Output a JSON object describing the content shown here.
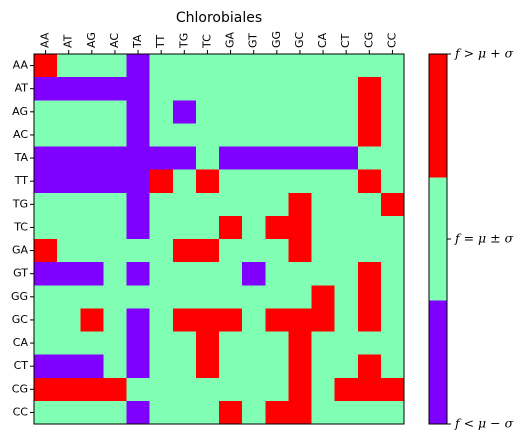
{
  "chart_data": {
    "type": "heatmap",
    "title": "Chlorobiales",
    "x_labels": [
      "AA",
      "AT",
      "AG",
      "AC",
      "TA",
      "TT",
      "TG",
      "TC",
      "GA",
      "GT",
      "GG",
      "GC",
      "CA",
      "CT",
      "CG",
      "CC"
    ],
    "y_labels": [
      "AA",
      "AT",
      "AG",
      "AC",
      "TA",
      "TT",
      "TG",
      "TC",
      "GA",
      "GT",
      "GG",
      "GC",
      "CA",
      "CT",
      "CG",
      "CC"
    ],
    "levels": [
      "below",
      "within",
      "above"
    ],
    "colors": {
      "below": "#8000ff",
      "within": "#80ffb4",
      "above": "#ff0000"
    },
    "colorbar_labels": [
      "f < μ − σ",
      "f = μ ± σ",
      "f > μ + σ"
    ],
    "matrix": [
      [
        2,
        1,
        1,
        1,
        0,
        1,
        1,
        1,
        1,
        1,
        1,
        1,
        1,
        1,
        1,
        1
      ],
      [
        0,
        0,
        0,
        0,
        0,
        1,
        1,
        1,
        1,
        1,
        1,
        1,
        1,
        1,
        2,
        1
      ],
      [
        1,
        1,
        1,
        1,
        0,
        1,
        0,
        1,
        1,
        1,
        1,
        1,
        1,
        1,
        2,
        1
      ],
      [
        1,
        1,
        1,
        1,
        0,
        1,
        1,
        1,
        1,
        1,
        1,
        1,
        1,
        1,
        2,
        1
      ],
      [
        0,
        0,
        0,
        0,
        0,
        0,
        0,
        1,
        0,
        0,
        0,
        0,
        0,
        0,
        1,
        1
      ],
      [
        0,
        0,
        0,
        0,
        0,
        2,
        1,
        2,
        1,
        1,
        1,
        1,
        1,
        1,
        2,
        1
      ],
      [
        1,
        1,
        1,
        1,
        0,
        1,
        1,
        1,
        1,
        1,
        1,
        2,
        1,
        1,
        1,
        2
      ],
      [
        1,
        1,
        1,
        1,
        0,
        1,
        1,
        1,
        2,
        1,
        2,
        2,
        1,
        1,
        1,
        1
      ],
      [
        2,
        1,
        1,
        1,
        1,
        1,
        2,
        2,
        1,
        1,
        1,
        2,
        1,
        1,
        1,
        1
      ],
      [
        0,
        0,
        0,
        1,
        0,
        1,
        1,
        1,
        1,
        0,
        1,
        1,
        1,
        1,
        2,
        1
      ],
      [
        1,
        1,
        1,
        1,
        1,
        1,
        1,
        1,
        1,
        1,
        1,
        1,
        2,
        1,
        2,
        1
      ],
      [
        1,
        1,
        2,
        1,
        0,
        1,
        2,
        2,
        2,
        1,
        2,
        2,
        2,
        1,
        2,
        1
      ],
      [
        1,
        1,
        1,
        1,
        0,
        1,
        1,
        2,
        1,
        1,
        1,
        2,
        1,
        1,
        1,
        1
      ],
      [
        0,
        0,
        0,
        1,
        0,
        1,
        1,
        2,
        1,
        1,
        1,
        2,
        1,
        1,
        2,
        1
      ],
      [
        2,
        2,
        2,
        2,
        1,
        1,
        1,
        1,
        1,
        1,
        1,
        2,
        1,
        2,
        2,
        2
      ],
      [
        1,
        1,
        1,
        1,
        0,
        1,
        1,
        1,
        2,
        1,
        2,
        2,
        1,
        1,
        1,
        1
      ]
    ]
  }
}
